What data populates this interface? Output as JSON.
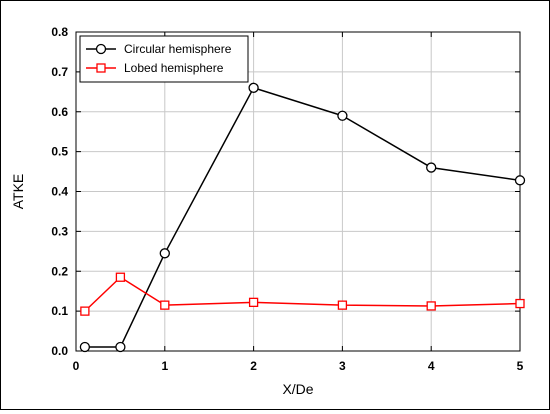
{
  "chart_data": {
    "type": "line",
    "title": "",
    "xlabel": "X/De",
    "ylabel": "ATKE",
    "xlim": [
      0,
      5
    ],
    "ylim": [
      0,
      0.8
    ],
    "xticks": [
      0,
      1,
      2,
      3,
      4,
      5
    ],
    "yticks": [
      0.0,
      0.1,
      0.2,
      0.3,
      0.4,
      0.5,
      0.6,
      0.7,
      0.8
    ],
    "xtick_labels": [
      "0",
      "1",
      "2",
      "3",
      "4",
      "5"
    ],
    "ytick_labels": [
      "0.0",
      "0.1",
      "0.2",
      "0.3",
      "0.4",
      "0.5",
      "0.6",
      "0.7",
      "0.8"
    ],
    "grid": true,
    "legend_position": "top-left",
    "series": [
      {
        "name": "Circular hemisphere",
        "color": "#000000",
        "marker": "circle",
        "x": [
          0.1,
          0.5,
          1,
          2,
          3,
          4,
          5
        ],
        "y": [
          0.01,
          0.01,
          0.245,
          0.66,
          0.59,
          0.46,
          0.428
        ]
      },
      {
        "name": "Lobed hemisphere",
        "color": "#ff0000",
        "marker": "square",
        "x": [
          0.1,
          0.5,
          1,
          2,
          3,
          4,
          5
        ],
        "y": [
          0.1,
          0.185,
          0.115,
          0.122,
          0.115,
          0.113,
          0.119
        ]
      }
    ]
  }
}
